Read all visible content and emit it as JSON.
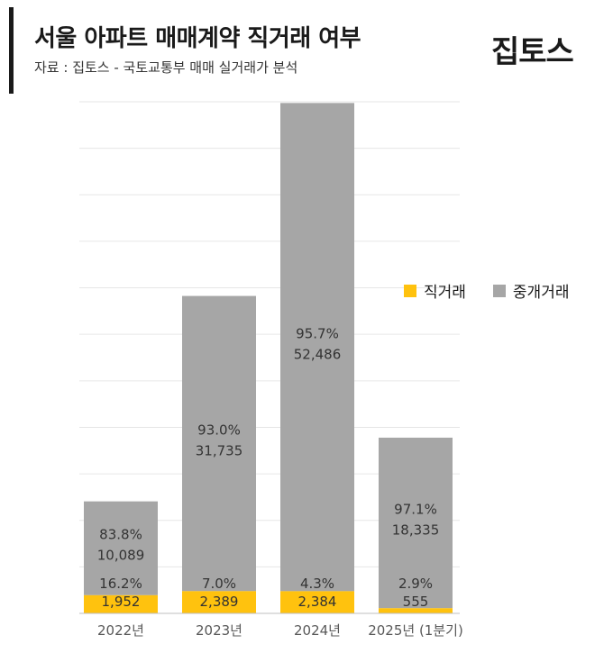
{
  "header": {
    "title": "서울 아파트 매매계약 직거래 여부",
    "subtitle": "자료 : 집토스 - 국토교통부 매매 실거래가 분석",
    "logo": "집토스"
  },
  "colors": {
    "direct": "#FFC20E",
    "broker": "#A6A6A6",
    "grid": "#E6E6E6",
    "axis": "#BFBFBF",
    "label": "#333333"
  },
  "chart_data": {
    "type": "bar",
    "stacked": true,
    "categories": [
      "2022년",
      "2023년",
      "2024년",
      "2025년 (1분기)"
    ],
    "series": [
      {
        "name": "직거래",
        "values": [
          1952,
          2389,
          2384,
          555
        ],
        "labels": [
          "1,952",
          "2,389",
          "2,384",
          "555"
        ],
        "percents": [
          "16.2%",
          "7.0%",
          "4.3%",
          "2.9%"
        ]
      },
      {
        "name": "중개거래",
        "values": [
          10089,
          31735,
          52486,
          18335
        ],
        "labels": [
          "10,089",
          "31,735",
          "52,486",
          "18,335"
        ],
        "percents": [
          "83.8%",
          "93.0%",
          "95.7%",
          "97.1%"
        ]
      }
    ],
    "ylim": [
      0,
      55000
    ],
    "grid": true,
    "legend": "right-middle"
  }
}
